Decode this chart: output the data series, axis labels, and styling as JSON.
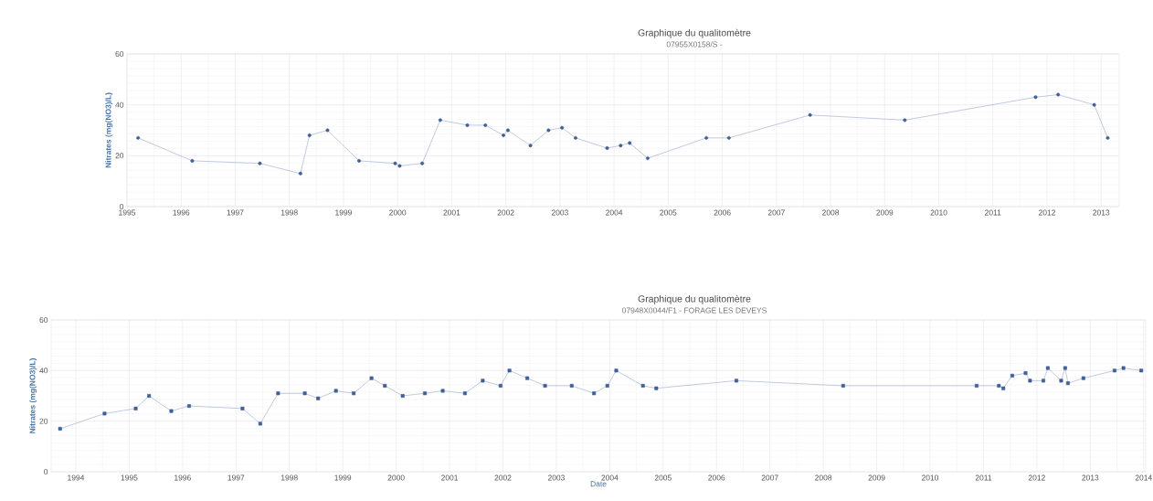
{
  "chart_data": [
    {
      "type": "line",
      "title": "Graphique du qualitomètre",
      "subtitle": "07955X0158/S -",
      "ylabel": "Nitrates (mg(NO3)/L)",
      "xlim": [
        "1995-01-01",
        "2013-05-01"
      ],
      "xticks": [
        "1995",
        "1996",
        "1997",
        "1998",
        "1999",
        "2000",
        "2001",
        "2002",
        "2003",
        "2004",
        "2005",
        "2006",
        "2007",
        "2008",
        "2009",
        "2010",
        "2011",
        "2012",
        "2013"
      ],
      "ylim": [
        0,
        60
      ],
      "yticks": [
        0,
        20,
        40,
        60
      ],
      "grid": true,
      "marker": "circle",
      "line_style": "solid",
      "series": [
        {
          "color": "#3f5f99",
          "x": [
            "1995-03",
            "1996-03",
            "1997-06",
            "1998-03",
            "1998-05",
            "1998-09",
            "1999-04",
            "1999-12",
            "2000-01",
            "2000-06",
            "2000-10",
            "2001-04",
            "2001-08",
            "2001-12",
            "2002-01",
            "2002-06",
            "2002-10",
            "2003-01",
            "2003-04",
            "2003-11",
            "2004-02",
            "2004-04",
            "2004-08",
            "2005-09",
            "2006-02",
            "2007-08",
            "2009-05",
            "2011-10",
            "2012-03",
            "2012-11",
            "2013-02"
          ],
          "values": [
            27,
            18,
            17,
            13,
            28,
            30,
            18,
            17,
            16,
            17,
            34,
            32,
            32,
            28,
            30,
            24,
            30,
            31,
            27,
            23,
            24,
            25,
            19,
            27,
            27,
            36,
            34,
            43,
            44,
            40,
            27
          ]
        }
      ]
    },
    {
      "type": "line",
      "title": "Graphique du qualitomètre",
      "subtitle": "07948X0044/F1 - FORAGE LES DEVEYS",
      "xlabel": "Date",
      "ylabel": "Nitrates (mg(NO3)/L)",
      "xlim": [
        "1993-07-15",
        "2014-01-15"
      ],
      "xticks": [
        "1994",
        "1995",
        "1996",
        "1997",
        "1998",
        "1999",
        "2000",
        "2001",
        "2002",
        "2003",
        "2004",
        "2005",
        "2006",
        "2007",
        "2008",
        "2009",
        "2010",
        "2011",
        "2012",
        "2013",
        "2014"
      ],
      "ylim": [
        0,
        60
      ],
      "yticks": [
        0,
        20,
        40,
        60
      ],
      "grid": true,
      "marker": "square",
      "line_style": "solid",
      "series": [
        {
          "color": "#3f5f99",
          "x": [
            "1993-09",
            "1994-07",
            "1995-02",
            "1995-05",
            "1995-10",
            "1996-02",
            "1997-02",
            "1997-06",
            "1997-10",
            "1998-04",
            "1998-07",
            "1998-11",
            "1999-03",
            "1999-07",
            "1999-10",
            "2000-02",
            "2000-07",
            "2000-11",
            "2001-04",
            "2001-08",
            "2001-12",
            "2002-02",
            "2002-06",
            "2002-10",
            "2003-04",
            "2003-09",
            "2003-12",
            "2004-02",
            "2004-08",
            "2004-11",
            "2006-05",
            "2008-05",
            "2010-11",
            "2011-04",
            "2011-05",
            "2011-07",
            "2011-10",
            "2011-11",
            "2012-02",
            "2012-03",
            "2012-06",
            "2012-07-12",
            "2012-07-31",
            "2012-11",
            "2013-06",
            "2013-08",
            "2013-12"
          ],
          "values": [
            17,
            23,
            25,
            30,
            24,
            26,
            25,
            19,
            31,
            31,
            29,
            32,
            31,
            37,
            34,
            30,
            31,
            32,
            31,
            36,
            34,
            40,
            37,
            34,
            34,
            31,
            34,
            40,
            34,
            33,
            36,
            34,
            34,
            34,
            33,
            38,
            39,
            36,
            36,
            41,
            36,
            41,
            35,
            37,
            40,
            41,
            40
          ]
        }
      ]
    }
  ]
}
